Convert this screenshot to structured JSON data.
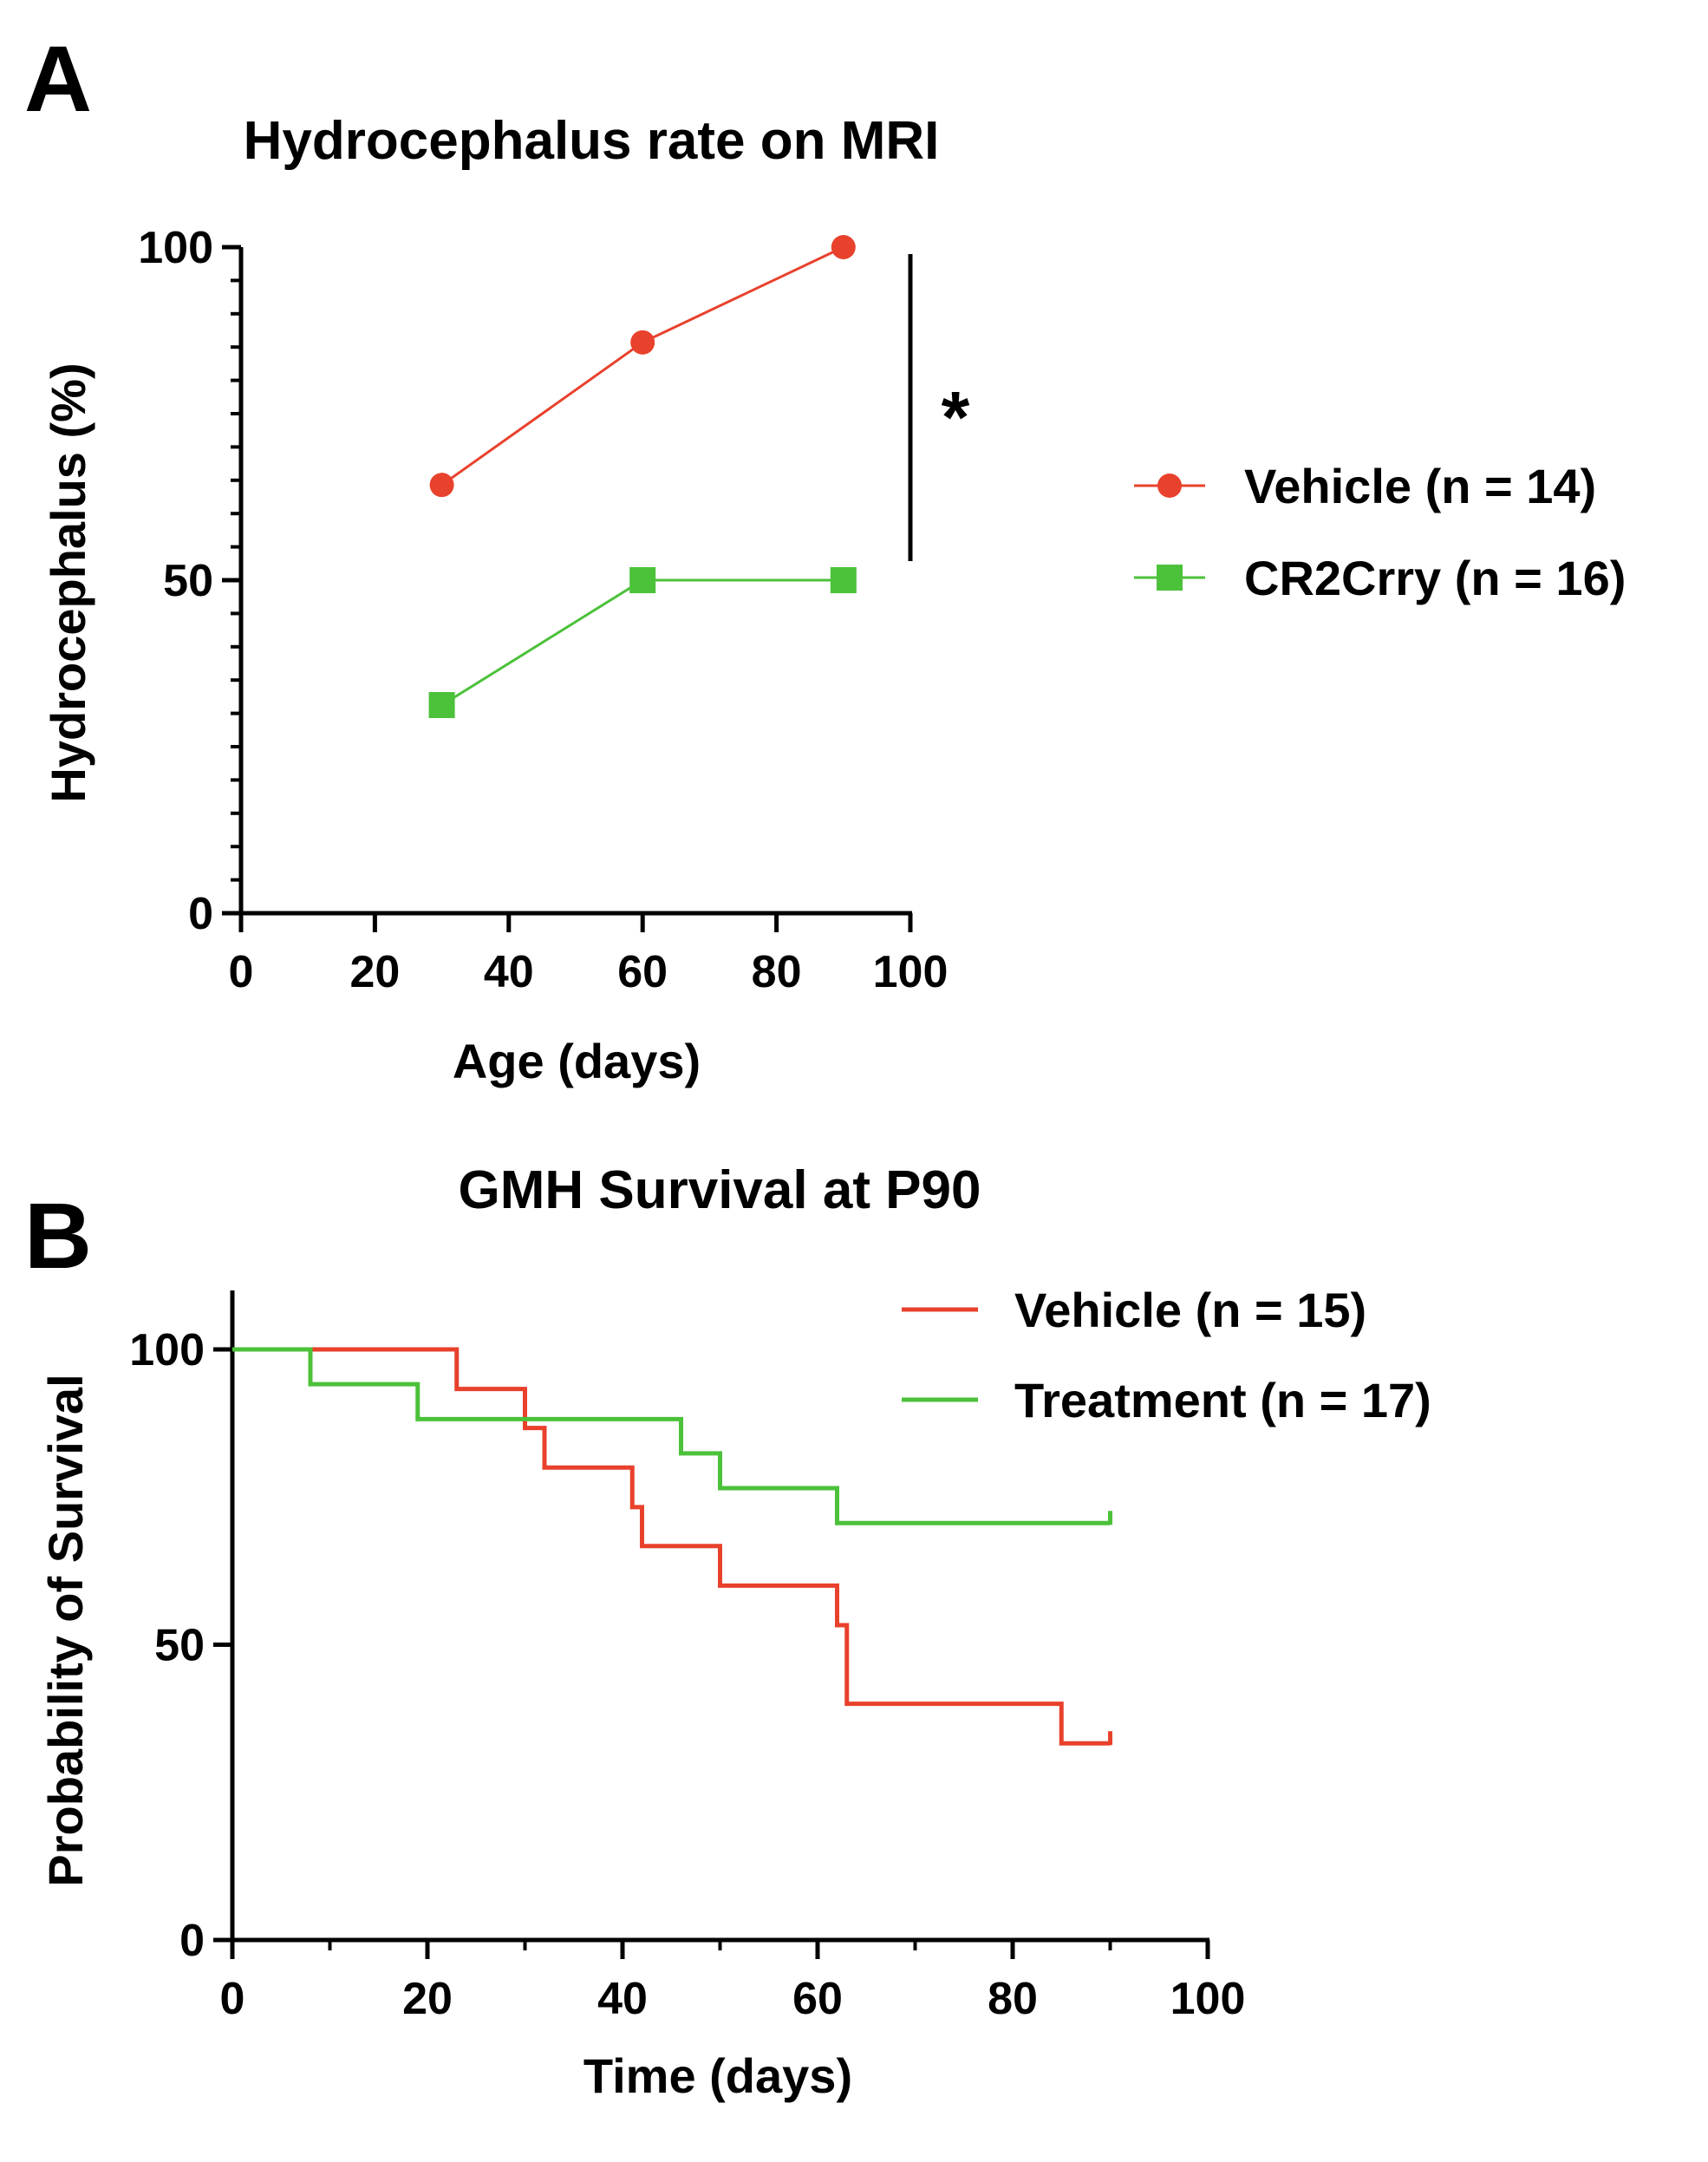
{
  "chart_data": [
    {
      "panel": "A",
      "type": "line",
      "title": "Hydrocephalus rate on  MRI",
      "xlabel": "Age (days)",
      "ylabel": "Hydrocephalus (%)",
      "xlim": [
        0,
        100
      ],
      "ylim": [
        0,
        100
      ],
      "x_ticks": [
        0,
        20,
        40,
        60,
        80,
        100
      ],
      "y_ticks": [
        0,
        50,
        100
      ],
      "x_tick_labels": [
        "0",
        "20",
        "40",
        "60",
        "80",
        "100"
      ],
      "y_tick_labels": [
        "0",
        "50",
        "100"
      ],
      "grid": false,
      "legend_position": "right",
      "annotation": "*",
      "series": [
        {
          "name": "Vehicle (n = 14)",
          "marker": "circle",
          "color": "#e8412c",
          "x": [
            30,
            60,
            90
          ],
          "y": [
            64.3,
            85.7,
            100
          ]
        },
        {
          "name": "CR2Crry (n = 16)",
          "marker": "square",
          "color": "#4cc13a",
          "x": [
            30,
            60,
            90
          ],
          "y": [
            31.25,
            50,
            50
          ]
        }
      ]
    },
    {
      "panel": "B",
      "type": "line",
      "subtype": "kaplan-meier",
      "title": "GMH Survival at P90",
      "xlabel": "Time (days)",
      "ylabel": "Probability of Survival",
      "xlim": [
        0,
        100
      ],
      "ylim": [
        0,
        100
      ],
      "x_ticks": [
        0,
        20,
        40,
        60,
        80,
        100
      ],
      "y_ticks": [
        0,
        50,
        100
      ],
      "x_tick_labels": [
        "0",
        "20",
        "40",
        "60",
        "80",
        "100"
      ],
      "y_tick_labels": [
        "0",
        "50",
        "100"
      ],
      "grid": false,
      "legend_position": "top-right",
      "series": [
        {
          "name": "Vehicle (n = 15)",
          "color": "#e8412c",
          "steps": [
            [
              0,
              100
            ],
            [
              23,
              93.3
            ],
            [
              30,
              86.7
            ],
            [
              32,
              80
            ],
            [
              41,
              73.3
            ],
            [
              42,
              66.7
            ],
            [
              50,
              60
            ],
            [
              62,
              53.3
            ],
            [
              63,
              40
            ],
            [
              85,
              33.3
            ]
          ],
          "end": 90,
          "censor": [
            90
          ]
        },
        {
          "name": "Treatment (n = 17)",
          "color": "#4cc13a",
          "steps": [
            [
              0,
              100
            ],
            [
              8,
              94.1
            ],
            [
              19,
              88.2
            ],
            [
              46,
              82.4
            ],
            [
              50,
              76.5
            ],
            [
              62,
              70.6
            ]
          ],
          "end": 90,
          "censor": [
            90
          ]
        }
      ]
    }
  ]
}
